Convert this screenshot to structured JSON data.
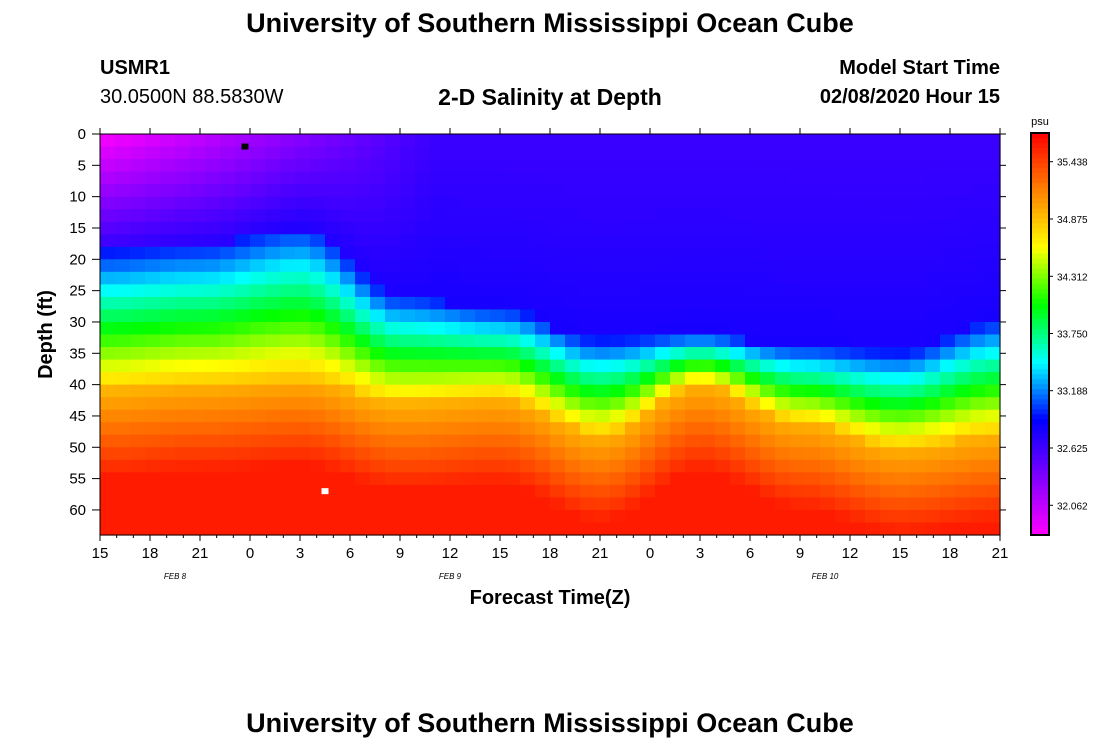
{
  "header": {
    "title": "University of Southern Mississippi Ocean Cube",
    "station": "USMR1",
    "coordinates": "30.0500N 88.5830W",
    "plot_title": "2-D Salinity at Depth",
    "start_label": "Model Start Time",
    "start_value": "02/08/2020 Hour 15"
  },
  "footer": {
    "title": "University of Southern Mississippi Ocean Cube"
  },
  "chart_data": {
    "type": "heatmap",
    "title": "2-D Salinity at Depth",
    "xlabel": "Forecast Time(Z)",
    "ylabel": "Depth (ft)",
    "x_tick_labels": [
      "15",
      "18",
      "21",
      "0",
      "3",
      "6",
      "9",
      "12",
      "15",
      "18",
      "21",
      "0",
      "3",
      "6",
      "9",
      "12",
      "15",
      "18",
      "21"
    ],
    "x_hours_from_start": [
      0,
      3,
      6,
      9,
      12,
      15,
      18,
      21,
      24,
      27,
      30,
      33,
      36,
      39,
      42,
      45,
      48,
      51,
      54
    ],
    "x_range_hours": [
      0,
      54
    ],
    "date_labels": [
      {
        "text": "FEB 8",
        "hours_from_start": 4.5
      },
      {
        "text": "FEB 9",
        "hours_from_start": 21
      },
      {
        "text": "FEB 10",
        "hours_from_start": 43.5
      }
    ],
    "y_ticks": [
      0,
      5,
      10,
      15,
      20,
      25,
      30,
      35,
      40,
      45,
      50,
      55,
      60
    ],
    "ylim": [
      0,
      64
    ],
    "y_inverted": true,
    "colorbar": {
      "unit": "psu",
      "tick_labels": [
        "35.438",
        "34.875",
        "34.312",
        "33.750",
        "33.188",
        "32.625",
        "32.062"
      ],
      "range": [
        31.77,
        35.72
      ],
      "colors": [
        "#ff00ff",
        "#8000ff",
        "#0000ff",
        "#00ffff",
        "#00ff00",
        "#ffff00",
        "#ff8000",
        "#ff0000"
      ]
    },
    "halocline_top_depth_ft": {
      "hours": [
        0,
        6,
        12,
        18,
        24,
        30,
        36,
        42,
        48,
        54
      ],
      "depths": [
        19,
        18,
        15,
        26,
        28,
        33,
        32,
        34,
        35,
        30
      ]
    },
    "halocline_bottom_depth_ft": {
      "hours": [
        0,
        6,
        12,
        18,
        24,
        30,
        36,
        42,
        48,
        54
      ],
      "depths": [
        41,
        40,
        39,
        43,
        42,
        48,
        40,
        46,
        50,
        48
      ]
    },
    "markers": [
      {
        "type": "min",
        "color": "#000000",
        "hours": 8.7,
        "depth_ft": 2
      },
      {
        "type": "max",
        "color": "#ffffff",
        "hours": 13.5,
        "depth_ft": 57
      }
    ]
  }
}
